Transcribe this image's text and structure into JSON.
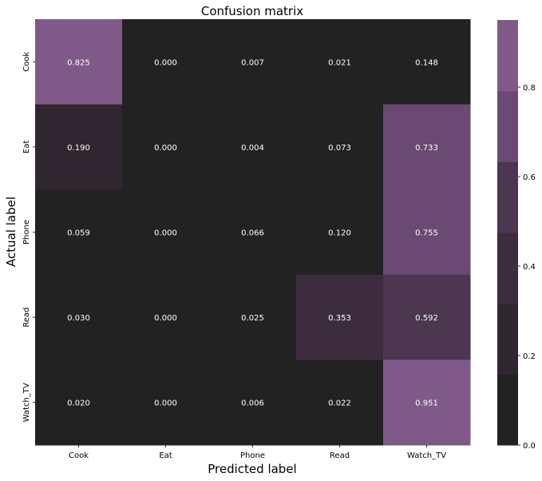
{
  "chart_data": {
    "type": "heatmap",
    "title": "Confusion matrix",
    "xlabel": "Predicted label",
    "ylabel": "Actual label",
    "x_categories": [
      "Cook",
      "Eat",
      "Phone",
      "Read",
      "Watch_TV"
    ],
    "y_categories": [
      "Cook",
      "Eat",
      "Phone",
      "Read",
      "Watch_TV"
    ],
    "values": [
      [
        0.825,
        0.0,
        0.007,
        0.021,
        0.148
      ],
      [
        0.19,
        0.0,
        0.004,
        0.073,
        0.733
      ],
      [
        0.059,
        0.0,
        0.066,
        0.12,
        0.755
      ],
      [
        0.03,
        0.0,
        0.025,
        0.353,
        0.592
      ],
      [
        0.02,
        0.0,
        0.006,
        0.022,
        0.951
      ]
    ],
    "value_format": "3 decimals",
    "colorbar": {
      "range": [
        0.0,
        0.95
      ],
      "ticks": [
        "0.0",
        "0.2",
        "0.4",
        "0.6",
        "0.8"
      ],
      "bins": 6,
      "colors": [
        "#222222",
        "#2f262f",
        "#3d2c3e",
        "#4c3650",
        "#6a4a72",
        "#7f5a88"
      ]
    }
  }
}
